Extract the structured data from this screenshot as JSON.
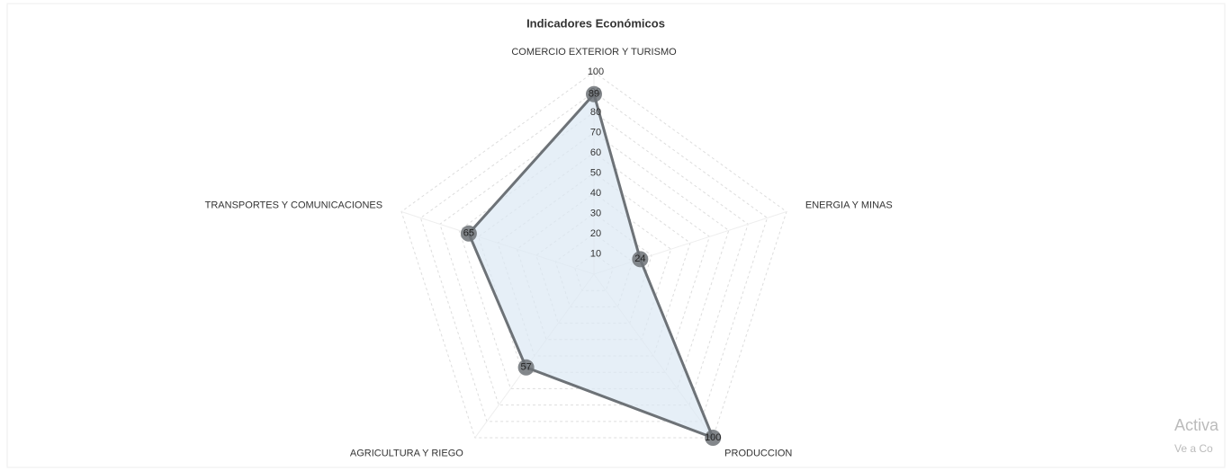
{
  "chart_data": {
    "type": "radar",
    "title": "Indicadores Económicos",
    "categories": [
      "COMERCIO EXTERIOR Y TURISMO",
      "ENERGIA Y MINAS",
      "PRODUCCION",
      "AGRICULTURA Y RIEGO",
      "TRANSPORTES Y COMUNICACIONES"
    ],
    "values": [
      89,
      24,
      100,
      57,
      65
    ],
    "color": "#6d7277",
    "fill": "#dbe8f3",
    "ylim": [
      0,
      100
    ],
    "yticks": [
      10,
      20,
      30,
      40,
      50,
      60,
      70,
      80,
      90,
      100
    ],
    "grid": true
  },
  "watermark": [
    "Activa",
    "Ve a Co"
  ]
}
